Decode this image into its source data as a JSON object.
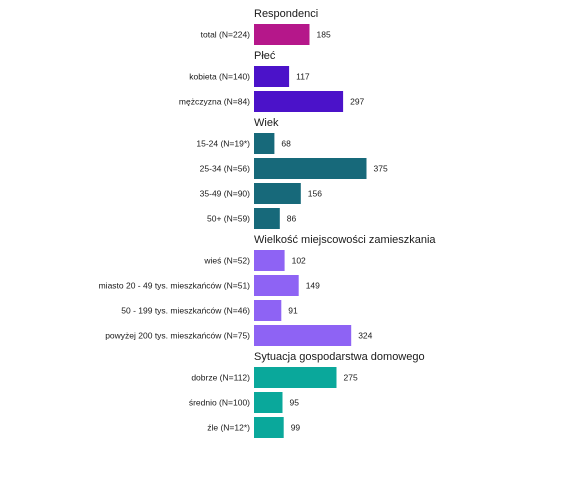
{
  "chart_data": {
    "type": "bar",
    "orientation": "horizontal",
    "grid": false,
    "groups": [
      {
        "title": "Respondenci",
        "color": "#b5178a",
        "categories": [
          "total (N=224)"
        ],
        "values": [
          185
        ]
      },
      {
        "title": "Płeć",
        "color": "#4b12c9",
        "categories": [
          "kobieta (N=140)",
          "mężczyzna (N=84)"
        ],
        "values": [
          117,
          297
        ]
      },
      {
        "title": "Wiek",
        "color": "#17697a",
        "categories": [
          "15-24 (N=19*)",
          "25-34 (N=56)",
          "35-49 (N=90)",
          "50+ (N=59)"
        ],
        "values": [
          68,
          375,
          156,
          86
        ]
      },
      {
        "title": "Wielkość miejscowości zamieszkania",
        "color": "#8e63f4",
        "categories": [
          "wieś (N=52)",
          "miasto 20 - 49 tys. mieszkańców (N=51)",
          "50 - 199 tys. mieszkańców (N=46)",
          "powyżej 200 tys. mieszkańców (N=75)"
        ],
        "values": [
          102,
          149,
          91,
          324
        ]
      },
      {
        "title": "Sytuacja gospodarstwa domowego",
        "color": "#0aa89b",
        "categories": [
          "dobrze (N=112)",
          "średnio (N=100)",
          "źle (N=12*)"
        ],
        "values": [
          275,
          95,
          99
        ]
      }
    ]
  }
}
